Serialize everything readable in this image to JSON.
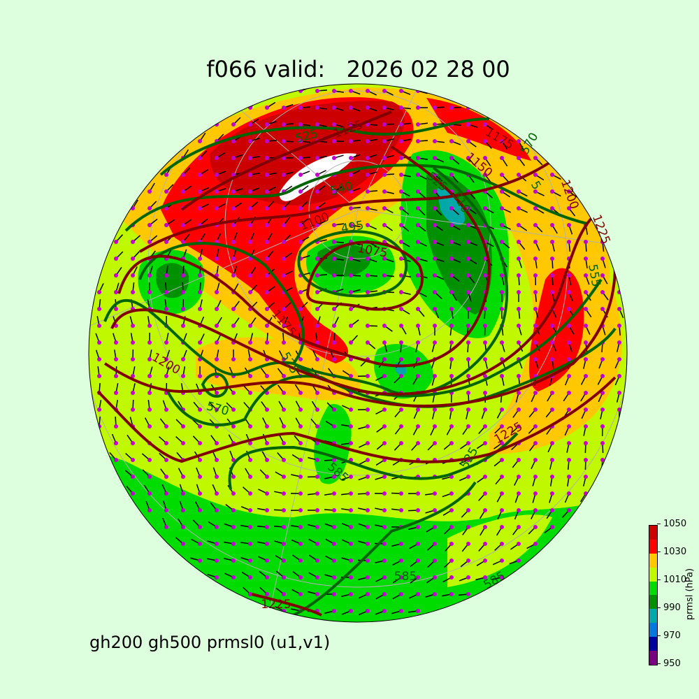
{
  "title": "f066 valid:   2026 02 28 00",
  "subtitle": "gh200 gh500 prmsl0 (u1,v1)",
  "colorbar": {
    "label": "prmsl (hPa)",
    "ticks": [
      "950",
      "970",
      "990",
      "1010",
      "1030",
      "1050"
    ],
    "levels": [
      950,
      960,
      970,
      980,
      990,
      1000,
      1010,
      1020,
      1030,
      1040,
      1050
    ],
    "colors": [
      "#780080",
      "#0000a0",
      "#0078e0",
      "#00a8a8",
      "#009000",
      "#00dc00",
      "#c0f800",
      "#ffc800",
      "#ff0000",
      "#cc0000"
    ]
  },
  "colors": {
    "background": "#ddffdd",
    "gh500_contour": "#006400",
    "gh200_contour": "#800000",
    "wind_dot": "#c000d0",
    "gridline": "#b0b0b0"
  },
  "contour_labels": {
    "gh500": [
      "525",
      "540",
      "495",
      "525",
      "510",
      "570",
      "5",
      "570",
      "555",
      "525",
      "525",
      "585",
      "585",
      "585"
    ],
    "gh200": [
      "1125",
      "1100",
      "1075",
      "1175",
      "1150",
      "1200",
      "1225",
      "1200",
      "1175",
      "1225",
      "1225"
    ]
  }
}
